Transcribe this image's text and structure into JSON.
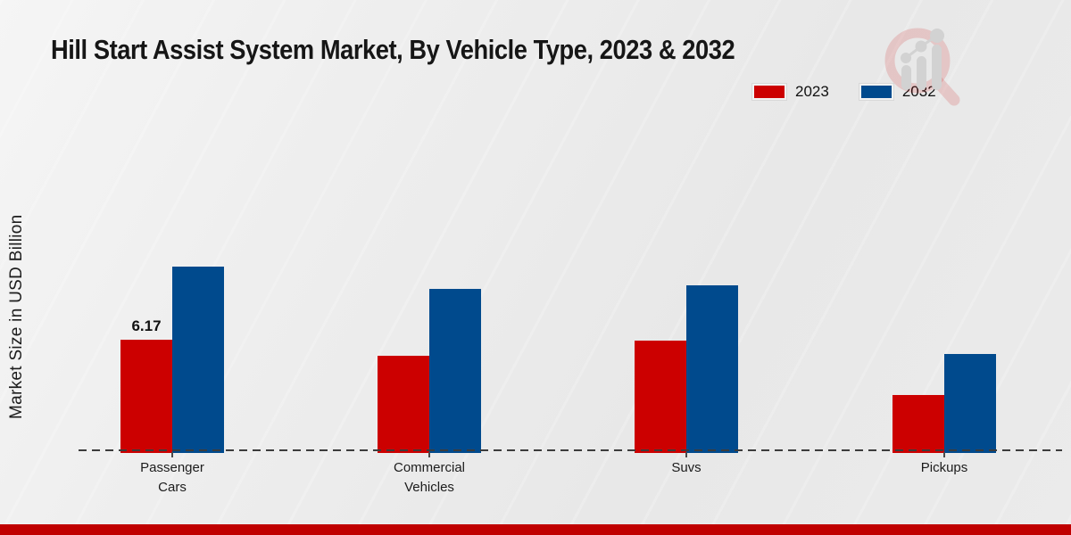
{
  "title": "Hill Start Assist System Market, By Vehicle Type, 2023 & 2032",
  "colors": {
    "series_2023": "#cc0000",
    "series_2032": "#004a8d",
    "footer_bar": "#c00000",
    "background": "#ececec",
    "dashed_axis": "#3c3c3c"
  },
  "legend": {
    "items": [
      {
        "label": "2023",
        "color": "#cc0000"
      },
      {
        "label": "2032",
        "color": "#004a8d"
      }
    ]
  },
  "watermark_icon": "chart-magnifier-logo",
  "chart_data": {
    "type": "bar",
    "title": "Hill Start Assist System Market, By Vehicle Type, 2023 & 2032",
    "xlabel": "",
    "ylabel": "Market Size in USD Billion",
    "categories": [
      "Passenger\nCars",
      "Commercial\nVehicles",
      "Suvs",
      "Pickups"
    ],
    "series": [
      {
        "name": "2023",
        "color": "#cc0000",
        "values": [
          6.17,
          5.3,
          6.12,
          3.16
        ]
      },
      {
        "name": "2032",
        "color": "#004a8d",
        "values": [
          10.15,
          8.95,
          9.12,
          5.4
        ]
      }
    ],
    "ylim": [
      0,
      11.5
    ],
    "grid": false,
    "legend_position": "top-right",
    "baseline_style": "dashed",
    "annotations": [
      {
        "category": "Passenger Cars",
        "series": "2023",
        "text": "6.17"
      }
    ]
  }
}
